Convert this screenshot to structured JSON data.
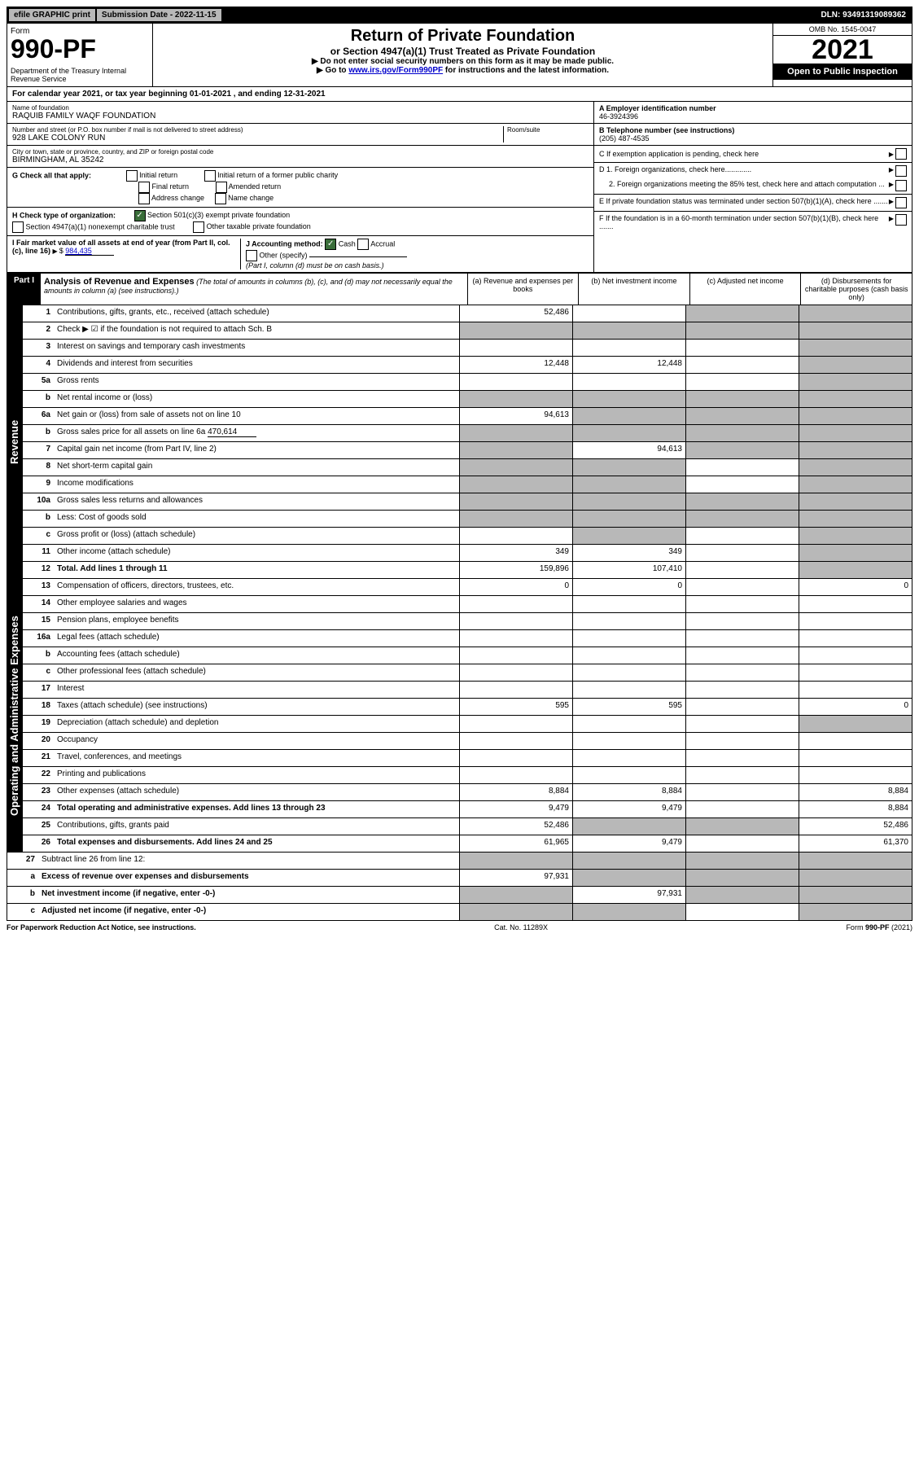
{
  "topbar": {
    "efile": "efile GRAPHIC print",
    "subdate": "Submission Date - 2022-11-15",
    "dln": "DLN: 93491319089362"
  },
  "header": {
    "form_label": "Form",
    "form_no": "990-PF",
    "dept": "Department of the Treasury\nInternal Revenue Service",
    "title": "Return of Private Foundation",
    "subtitle": "or Section 4947(a)(1) Trust Treated as Private Foundation",
    "note1": "▶ Do not enter social security numbers on this form as it may be made public.",
    "note2_pre": "▶ Go to ",
    "note2_link": "www.irs.gov/Form990PF",
    "note2_post": " for instructions and the latest information.",
    "omb": "OMB No. 1545-0047",
    "year": "2021",
    "open": "Open to Public Inspection"
  },
  "calyear": "For calendar year 2021, or tax year beginning 01-01-2021                    , and ending 12-31-2021",
  "info": {
    "name_label": "Name of foundation",
    "name": "RAQUIB FAMILY WAQF FOUNDATION",
    "addr_label": "Number and street (or P.O. box number if mail is not delivered to street address)",
    "addr": "928 LAKE COLONY RUN",
    "room_label": "Room/suite",
    "city_label": "City or town, state or province, country, and ZIP or foreign postal code",
    "city": "BIRMINGHAM, AL  35242",
    "ein_label": "A Employer identification number",
    "ein": "46-3924396",
    "phone_label": "B Telephone number (see instructions)",
    "phone": "(205) 487-4535",
    "c": "C If exemption application is pending, check here",
    "d1": "D 1. Foreign organizations, check here.............",
    "d2": "2. Foreign organizations meeting the 85% test, check here and attach computation ...",
    "e": "E  If private foundation status was terminated under section 507(b)(1)(A), check here .......",
    "f": "F  If the foundation is in a 60-month termination under section 507(b)(1)(B), check here .......",
    "g_label": "G Check all that apply:",
    "g_opts": [
      "Initial return",
      "Initial return of a former public charity",
      "Final return",
      "Amended return",
      "Address change",
      "Name change"
    ],
    "h_label": "H Check type of organization:",
    "h_501": "Section 501(c)(3) exempt private foundation",
    "h_4947": "Section 4947(a)(1) nonexempt charitable trust",
    "h_other": "Other taxable private foundation",
    "i_label": "I Fair market value of all assets at end of year (from Part II, col. (c), line 16)",
    "i_val": "984,435",
    "j_label": "J Accounting method:",
    "j_cash": "Cash",
    "j_accrual": "Accrual",
    "j_other": "Other (specify)",
    "j_note": "(Part I, column (d) must be on cash basis.)"
  },
  "part1": {
    "label": "Part I",
    "title": "Analysis of Revenue and Expenses",
    "note": "(The total of amounts in columns (b), (c), and (d) may not necessarily equal the amounts in column (a) (see instructions).)",
    "col_a": "(a)   Revenue and expenses per books",
    "col_b": "(b)   Net investment income",
    "col_c": "(c)   Adjusted net income",
    "col_d": "(d)   Disbursements for charitable purposes (cash basis only)"
  },
  "side_rev": "Revenue",
  "side_exp": "Operating and Administrative Expenses",
  "rows": {
    "r1": {
      "n": "1",
      "l": "Contributions, gifts, grants, etc., received (attach schedule)",
      "a": "52,486",
      "b": "",
      "c": "g",
      "d": "g"
    },
    "r2": {
      "n": "2",
      "l": "Check ▶ ☑ if the foundation is not required to attach Sch. B",
      "a": "g",
      "b": "g",
      "c": "g",
      "d": "g"
    },
    "r3": {
      "n": "3",
      "l": "Interest on savings and temporary cash investments",
      "a": "",
      "b": "",
      "c": "",
      "d": "g"
    },
    "r4": {
      "n": "4",
      "l": "Dividends and interest from securities",
      "a": "12,448",
      "b": "12,448",
      "c": "",
      "d": "g"
    },
    "r5a": {
      "n": "5a",
      "l": "Gross rents",
      "a": "",
      "b": "",
      "c": "",
      "d": "g"
    },
    "r5b": {
      "n": "b",
      "l": "Net rental income or (loss)",
      "a": "g",
      "b": "g",
      "c": "g",
      "d": "g"
    },
    "r6a": {
      "n": "6a",
      "l": "Net gain or (loss) from sale of assets not on line 10",
      "a": "94,613",
      "b": "g",
      "c": "g",
      "d": "g"
    },
    "r6b": {
      "n": "b",
      "l": "Gross sales price for all assets on line 6a",
      "v": "470,614",
      "a": "g",
      "b": "g",
      "c": "g",
      "d": "g"
    },
    "r7": {
      "n": "7",
      "l": "Capital gain net income (from Part IV, line 2)",
      "a": "g",
      "b": "94,613",
      "c": "g",
      "d": "g"
    },
    "r8": {
      "n": "8",
      "l": "Net short-term capital gain",
      "a": "g",
      "b": "g",
      "c": "",
      "d": "g"
    },
    "r9": {
      "n": "9",
      "l": "Income modifications",
      "a": "g",
      "b": "g",
      "c": "",
      "d": "g"
    },
    "r10a": {
      "n": "10a",
      "l": "Gross sales less returns and allowances",
      "a": "g",
      "b": "g",
      "c": "g",
      "d": "g"
    },
    "r10b": {
      "n": "b",
      "l": "Less: Cost of goods sold",
      "a": "g",
      "b": "g",
      "c": "g",
      "d": "g"
    },
    "r10c": {
      "n": "c",
      "l": "Gross profit or (loss) (attach schedule)",
      "a": "",
      "b": "g",
      "c": "",
      "d": "g"
    },
    "r11": {
      "n": "11",
      "l": "Other income (attach schedule)",
      "a": "349",
      "b": "349",
      "c": "",
      "d": "g"
    },
    "r12": {
      "n": "12",
      "l": "Total. Add lines 1 through 11",
      "a": "159,896",
      "b": "107,410",
      "c": "",
      "d": "g"
    },
    "r13": {
      "n": "13",
      "l": "Compensation of officers, directors, trustees, etc.",
      "a": "0",
      "b": "0",
      "c": "",
      "d": "0"
    },
    "r14": {
      "n": "14",
      "l": "Other employee salaries and wages",
      "a": "",
      "b": "",
      "c": "",
      "d": ""
    },
    "r15": {
      "n": "15",
      "l": "Pension plans, employee benefits",
      "a": "",
      "b": "",
      "c": "",
      "d": ""
    },
    "r16a": {
      "n": "16a",
      "l": "Legal fees (attach schedule)",
      "a": "",
      "b": "",
      "c": "",
      "d": ""
    },
    "r16b": {
      "n": "b",
      "l": "Accounting fees (attach schedule)",
      "a": "",
      "b": "",
      "c": "",
      "d": ""
    },
    "r16c": {
      "n": "c",
      "l": "Other professional fees (attach schedule)",
      "a": "",
      "b": "",
      "c": "",
      "d": ""
    },
    "r17": {
      "n": "17",
      "l": "Interest",
      "a": "",
      "b": "",
      "c": "",
      "d": ""
    },
    "r18": {
      "n": "18",
      "l": "Taxes (attach schedule) (see instructions)",
      "a": "595",
      "b": "595",
      "c": "",
      "d": "0"
    },
    "r19": {
      "n": "19",
      "l": "Depreciation (attach schedule) and depletion",
      "a": "",
      "b": "",
      "c": "",
      "d": "g"
    },
    "r20": {
      "n": "20",
      "l": "Occupancy",
      "a": "",
      "b": "",
      "c": "",
      "d": ""
    },
    "r21": {
      "n": "21",
      "l": "Travel, conferences, and meetings",
      "a": "",
      "b": "",
      "c": "",
      "d": ""
    },
    "r22": {
      "n": "22",
      "l": "Printing and publications",
      "a": "",
      "b": "",
      "c": "",
      "d": ""
    },
    "r23": {
      "n": "23",
      "l": "Other expenses (attach schedule)",
      "a": "8,884",
      "b": "8,884",
      "c": "",
      "d": "8,884"
    },
    "r24": {
      "n": "24",
      "l": "Total operating and administrative expenses. Add lines 13 through 23",
      "a": "9,479",
      "b": "9,479",
      "c": "",
      "d": "8,884"
    },
    "r25": {
      "n": "25",
      "l": "Contributions, gifts, grants paid",
      "a": "52,486",
      "b": "g",
      "c": "g",
      "d": "52,486"
    },
    "r26": {
      "n": "26",
      "l": "Total expenses and disbursements. Add lines 24 and 25",
      "a": "61,965",
      "b": "9,479",
      "c": "",
      "d": "61,370"
    },
    "r27": {
      "n": "27",
      "l": "Subtract line 26 from line 12:",
      "a": "g",
      "b": "g",
      "c": "g",
      "d": "g"
    },
    "r27a": {
      "n": "a",
      "l": "Excess of revenue over expenses and disbursements",
      "a": "97,931",
      "b": "g",
      "c": "g",
      "d": "g"
    },
    "r27b": {
      "n": "b",
      "l": "Net investment income (if negative, enter -0-)",
      "a": "g",
      "b": "97,931",
      "c": "g",
      "d": "g"
    },
    "r27c": {
      "n": "c",
      "l": "Adjusted net income (if negative, enter -0-)",
      "a": "g",
      "b": "g",
      "c": "",
      "d": "g"
    }
  },
  "footer": {
    "left": "For Paperwork Reduction Act Notice, see instructions.",
    "mid": "Cat. No. 11289X",
    "right": "Form 990-PF (2021)"
  },
  "colors": {
    "grey": "#b8b8b8",
    "green": "#3a6e3a",
    "link": "#0000cc"
  }
}
